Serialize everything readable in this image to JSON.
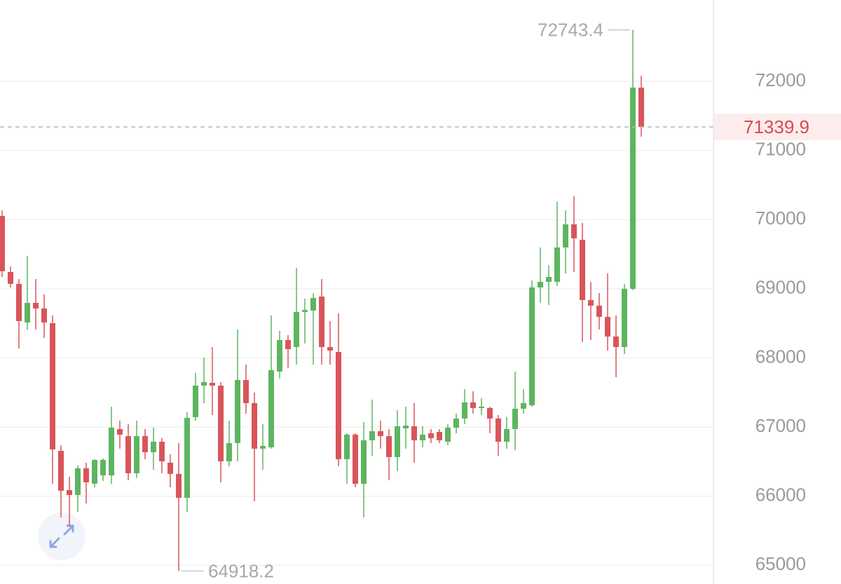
{
  "chart_data": {
    "type": "candlestick",
    "up_color": "#5db560",
    "down_color": "#d9555a",
    "grid": true,
    "ylim": [
      64730,
      73176
    ],
    "yticks": [
      65000,
      66000,
      67000,
      68000,
      69000,
      70000,
      71000,
      72000
    ],
    "open": [
      70053,
      69242,
      69070,
      68512,
      68796,
      68715,
      68502,
      66656,
      66088,
      66017,
      66403,
      66180,
      66301,
      66301,
      66971,
      66869,
      66332,
      66869,
      66636,
      66788,
      66484,
      66322,
      65977,
      67143,
      67599,
      67640,
      67599,
      66504,
      66768,
      67680,
      67346,
      66687,
      66707,
      67802,
      68258,
      68157,
      68664,
      68684,
      68887,
      68157,
      68086,
      66535,
      66890,
      66180,
      66808,
      66940,
      66869,
      66565,
      66981,
      67011,
      66808,
      66910,
      66930,
      66788,
      66991,
      67123,
      67356,
      67275,
      67275,
      67123,
      66788,
      66971,
      67265,
      67315,
      69019,
      69100,
      69100,
      69597,
      69931,
      69708,
      68836,
      68755,
      68593,
      68309,
      68157,
      68999,
      71909
    ],
    "high": [
      70134,
      69323,
      69140,
      69475,
      69140,
      68917,
      68613,
      66737,
      66281,
      66443,
      66484,
      66535,
      66545,
      67295,
      67092,
      67042,
      67092,
      66971,
      66991,
      66839,
      66606,
      66768,
      67214,
      67782,
      68005,
      68157,
      67650,
      67092,
      68411,
      67903,
      67498,
      67042,
      68613,
      68390,
      68330,
      69303,
      68857,
      68938,
      69140,
      68532,
      68644,
      66910,
      66910,
      67072,
      67396,
      67092,
      66971,
      67244,
      67295,
      67346,
      67011,
      66971,
      66971,
      67042,
      67194,
      67549,
      67518,
      67417,
      67295,
      67173,
      67143,
      67802,
      67549,
      69120,
      69597,
      69343,
      70256,
      70134,
      70337,
      69952,
      69100,
      68938,
      69222,
      68613,
      69070,
      72743.4,
      72081
    ],
    "low": [
      69171,
      69019,
      68137,
      68410,
      68410,
      68289,
      66180,
      65693,
      65571,
      65774,
      65896,
      66129,
      66220,
      66180,
      66687,
      66230,
      66261,
      66535,
      66382,
      66332,
      66129,
      64918.2,
      65774,
      67092,
      67346,
      67173,
      66200,
      66433,
      66504,
      67194,
      65926,
      66382,
      66687,
      67701,
      67853,
      67903,
      68208,
      67903,
      67903,
      67903,
      66433,
      66180,
      66129,
      65693,
      66585,
      66687,
      66230,
      66362,
      66687,
      66484,
      66707,
      66768,
      66768,
      66737,
      66910,
      67042,
      67194,
      67173,
      66910,
      66585,
      66687,
      66666,
      67194,
      67295,
      68796,
      68765,
      69039,
      69222,
      69242,
      68228,
      68258,
      68410,
      68106,
      67721,
      68055,
      68979,
      71199
    ],
    "close": [
      69252,
      69070,
      68532,
      68796,
      68715,
      68512,
      66677,
      66078,
      66017,
      66403,
      66200,
      66524,
      66524,
      66991,
      66890,
      66332,
      66869,
      66636,
      66788,
      66504,
      66322,
      65977,
      67133,
      67599,
      67650,
      67599,
      66504,
      66768,
      67680,
      67346,
      66687,
      66727,
      67822,
      68258,
      68126,
      68664,
      68694,
      68867,
      68157,
      68106,
      66535,
      66890,
      66180,
      66808,
      66940,
      66869,
      66565,
      67011,
      67021,
      66808,
      66890,
      66839,
      66808,
      66991,
      67123,
      67356,
      67275,
      67295,
      67123,
      66788,
      66971,
      67265,
      67346,
      69019,
      69100,
      69171,
      69597,
      69931,
      69729,
      68836,
      68755,
      68593,
      68309,
      68157,
      68999,
      71909,
      71339.9
    ]
  }
}
